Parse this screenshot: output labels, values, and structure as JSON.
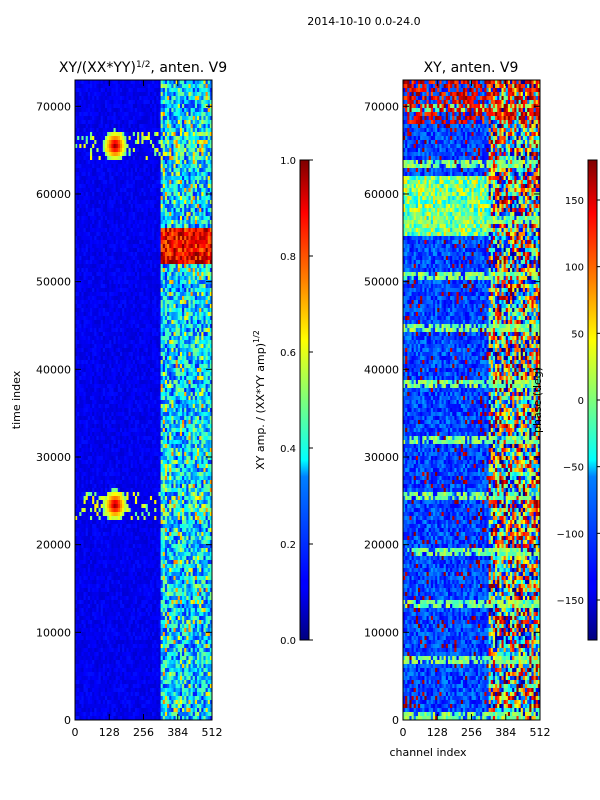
{
  "figure": {
    "suptitle": "2014-10-10 0.0-24.0"
  },
  "chart_data": [
    {
      "type": "heatmap",
      "title": "XY/(XX*YY)",
      "title_superscript": "1/2",
      "title_suffix": ", anten. V9",
      "xlabel": "",
      "ylabel": "time index",
      "xlim": [
        0,
        512
      ],
      "ylim": [
        0,
        73000
      ],
      "x_ticks": [
        0,
        128,
        256,
        384,
        512
      ],
      "y_ticks": [
        0,
        10000,
        20000,
        30000,
        40000,
        50000,
        60000,
        70000
      ],
      "colorbar": {
        "label": "XY amp. / (XX*YY amp)",
        "label_superscript": "1/2",
        "range": [
          0.0,
          1.0
        ],
        "ticks": [
          "0.0",
          "0.2",
          "0.4",
          "0.6",
          "0.8",
          "1.0"
        ],
        "colormap": "jet"
      },
      "features": [
        {
          "desc": "bright band",
          "time_range": [
            52000,
            56000
          ],
          "channel_range": [
            320,
            512
          ],
          "value": 0.9
        },
        {
          "desc": "hot spot",
          "time_center": 24500,
          "channel_center": 150,
          "value": 1.0
        },
        {
          "desc": "hot spot",
          "time_center": 65500,
          "channel_center": 150,
          "value": 1.0
        }
      ]
    },
    {
      "type": "heatmap",
      "title": "XY, anten. V9",
      "xlabel": "channel index",
      "ylabel": "",
      "xlim": [
        0,
        512
      ],
      "ylim": [
        0,
        73000
      ],
      "x_ticks": [
        0,
        128,
        256,
        384,
        512
      ],
      "y_ticks": [
        0,
        10000,
        20000,
        30000,
        40000,
        50000,
        60000,
        70000
      ],
      "colorbar": {
        "label": "phase (deg)",
        "range": [
          -180,
          180
        ],
        "ticks": [
          "150",
          "100",
          "50",
          "0",
          "−50",
          "−100",
          "−150"
        ],
        "colormap": "jet"
      }
    }
  ]
}
